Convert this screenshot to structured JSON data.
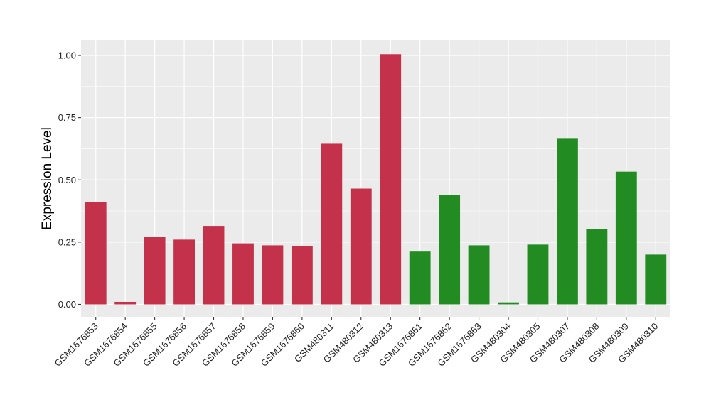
{
  "chart_data": {
    "type": "bar",
    "ylabel": "Expression Level",
    "xlabel": "",
    "ylim": [
      -0.05,
      1.06
    ],
    "yticks": [
      0.0,
      0.25,
      0.5,
      0.75,
      1.0
    ],
    "ytick_labels": [
      "0.00",
      "0.25",
      "0.50",
      "0.75",
      "1.00"
    ],
    "grid": true,
    "background_color": "#EBEBEB",
    "grid_color": "#FFFFFF",
    "colors": {
      "red": "#C4314B",
      "green": "#228B22"
    },
    "categories": [
      "GSM1676853",
      "GSM1676854",
      "GSM1676855",
      "GSM1676856",
      "GSM1676857",
      "GSM1676858",
      "GSM1676859",
      "GSM1676860",
      "GSM480311",
      "GSM480312",
      "GSM480313",
      "GSM1676861",
      "GSM1676862",
      "GSM1676863",
      "GSM480304",
      "GSM480305",
      "GSM480307",
      "GSM480308",
      "GSM480309",
      "GSM480310"
    ],
    "values": [
      0.41,
      0.01,
      0.27,
      0.26,
      0.315,
      0.245,
      0.237,
      0.235,
      0.645,
      0.465,
      1.005,
      0.212,
      0.438,
      0.237,
      0.008,
      0.24,
      0.668,
      0.302,
      0.533,
      0.2
    ],
    "bar_colors": [
      "red",
      "red",
      "red",
      "red",
      "red",
      "red",
      "red",
      "red",
      "red",
      "red",
      "red",
      "green",
      "green",
      "green",
      "green",
      "green",
      "green",
      "green",
      "green",
      "green"
    ]
  }
}
